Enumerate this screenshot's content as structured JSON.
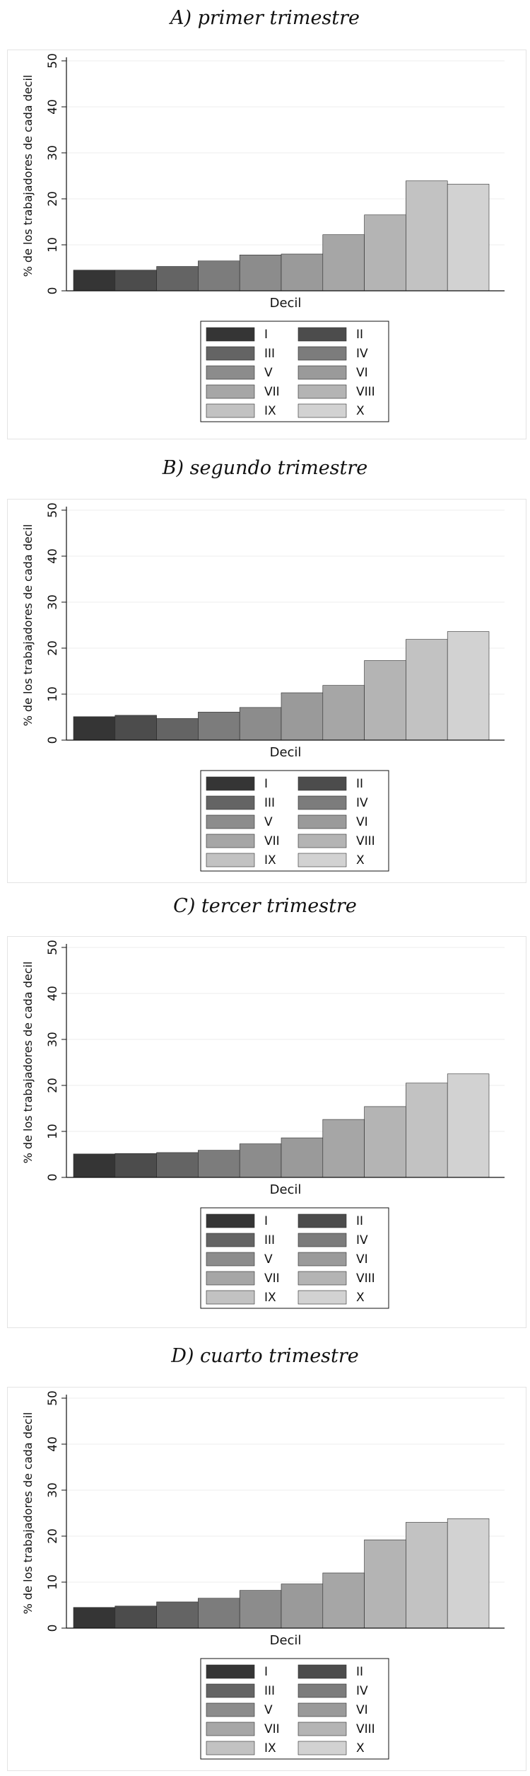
{
  "chart_data": [
    {
      "type": "bar",
      "title": "A) primer trimestre",
      "xlabel": "Decil",
      "ylabel": "% de los trabajadores de cada decil",
      "ylim": [
        0,
        50
      ],
      "yticks": [
        0,
        10,
        20,
        30,
        40,
        50
      ],
      "grid": true,
      "legend_placement": "bottom",
      "categories": [
        "I",
        "II",
        "III",
        "IV",
        "V",
        "VI",
        "VII",
        "VIII",
        "IX",
        "X"
      ],
      "values": [
        4.5,
        4.5,
        5.3,
        6.5,
        7.8,
        8.0,
        12.2,
        16.5,
        23.9,
        23.2
      ],
      "colors": [
        "#353535",
        "#4c4c4c",
        "#646464",
        "#7c7c7c",
        "#8c8c8c",
        "#9a9a9a",
        "#a6a6a6",
        "#b4b4b4",
        "#c2c2c2",
        "#d2d2d2"
      ]
    },
    {
      "type": "bar",
      "title": "B) segundo trimestre",
      "xlabel": "Decil",
      "ylabel": "% de los trabajadores de cada decil",
      "ylim": [
        0,
        50
      ],
      "yticks": [
        0,
        10,
        20,
        30,
        40,
        50
      ],
      "grid": true,
      "legend_placement": "bottom",
      "categories": [
        "I",
        "II",
        "III",
        "IV",
        "V",
        "VI",
        "VII",
        "VIII",
        "IX",
        "X"
      ],
      "values": [
        5.1,
        5.4,
        4.7,
        6.1,
        7.1,
        10.3,
        11.9,
        17.3,
        21.9,
        23.6
      ],
      "colors": [
        "#353535",
        "#4c4c4c",
        "#646464",
        "#7c7c7c",
        "#8c8c8c",
        "#9a9a9a",
        "#a6a6a6",
        "#b4b4b4",
        "#c2c2c2",
        "#d2d2d2"
      ]
    },
    {
      "type": "bar",
      "title": "C) tercer trimestre",
      "xlabel": "Decil",
      "ylabel": "% de los trabajadores de cada decil",
      "ylim": [
        0,
        50
      ],
      "yticks": [
        0,
        10,
        20,
        30,
        40,
        50
      ],
      "grid": true,
      "legend_placement": "bottom",
      "categories": [
        "I",
        "II",
        "III",
        "IV",
        "V",
        "VI",
        "VII",
        "VIII",
        "IX",
        "X"
      ],
      "values": [
        5.1,
        5.2,
        5.4,
        5.9,
        7.3,
        8.6,
        12.6,
        15.4,
        20.5,
        22.5
      ],
      "colors": [
        "#353535",
        "#4c4c4c",
        "#646464",
        "#7c7c7c",
        "#8c8c8c",
        "#9a9a9a",
        "#a6a6a6",
        "#b4b4b4",
        "#c2c2c2",
        "#d2d2d2"
      ]
    },
    {
      "type": "bar",
      "title": "D) cuarto trimestre",
      "xlabel": "Decil",
      "ylabel": "% de los trabajadores de cada decil",
      "ylim": [
        0,
        50
      ],
      "yticks": [
        0,
        10,
        20,
        30,
        40,
        50
      ],
      "grid": true,
      "legend_placement": "bottom",
      "categories": [
        "I",
        "II",
        "III",
        "IV",
        "V",
        "VI",
        "VII",
        "VIII",
        "IX",
        "X"
      ],
      "values": [
        4.5,
        4.8,
        5.7,
        6.5,
        8.2,
        9.6,
        12.0,
        19.2,
        23.0,
        23.8
      ],
      "colors": [
        "#353535",
        "#4c4c4c",
        "#646464",
        "#7c7c7c",
        "#8c8c8c",
        "#9a9a9a",
        "#a6a6a6",
        "#b4b4b4",
        "#c2c2c2",
        "#d2d2d2"
      ]
    }
  ]
}
